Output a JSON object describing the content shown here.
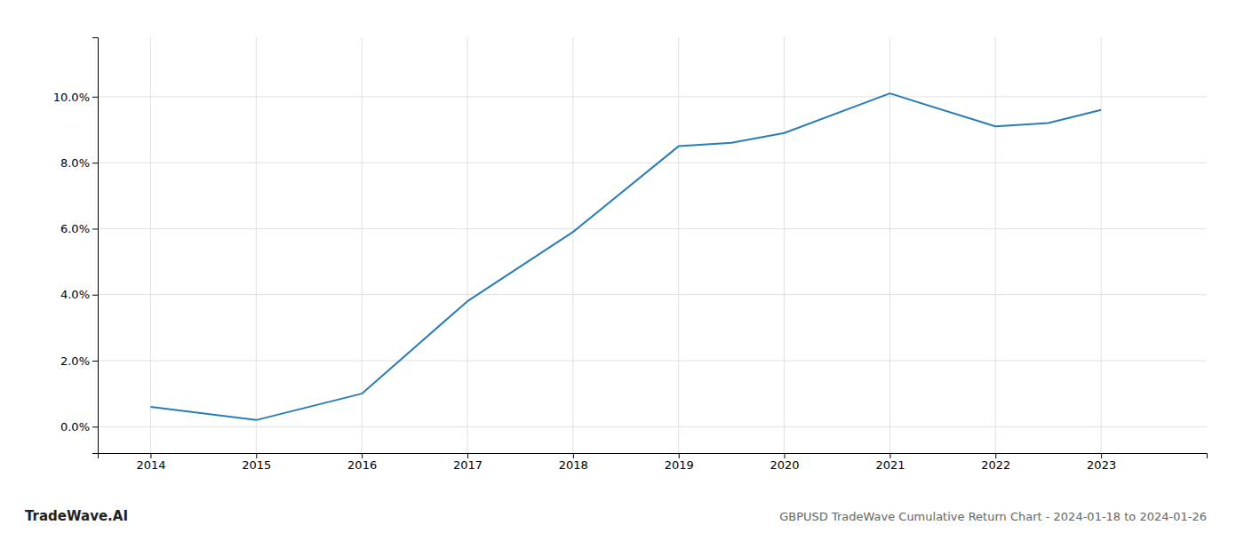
{
  "chart_data": {
    "type": "line",
    "title": "GBPUSD TradeWave Cumulative Return Chart - 2024-01-18 to 2024-01-26",
    "annotations": [
      "TradeWave.AI"
    ],
    "x": [
      2014,
      2015,
      2016,
      2017,
      2018,
      2019,
      2019.5,
      2020,
      2021,
      2022,
      2022.5,
      2023
    ],
    "values": [
      0.006,
      0.002,
      0.01,
      0.038,
      0.059,
      0.085,
      0.086,
      0.089,
      0.101,
      0.091,
      0.092,
      0.096
    ],
    "color": "#2b7cb5",
    "xlim": [
      2013.5,
      2024.0
    ],
    "ylim": [
      -0.008,
      0.118
    ],
    "xticks": [
      2014,
      2015,
      2016,
      2017,
      2018,
      2019,
      2020,
      2021,
      2022,
      2023
    ],
    "yticks": [
      {
        "value": 0.0,
        "label": "0.0%"
      },
      {
        "value": 0.02,
        "label": "2.0%"
      },
      {
        "value": 0.04,
        "label": "4.0%"
      },
      {
        "value": 0.06,
        "label": "6.0%"
      },
      {
        "value": 0.08,
        "label": "8.0%"
      },
      {
        "value": 0.1,
        "label": "10.0%"
      }
    ],
    "grid": true
  }
}
